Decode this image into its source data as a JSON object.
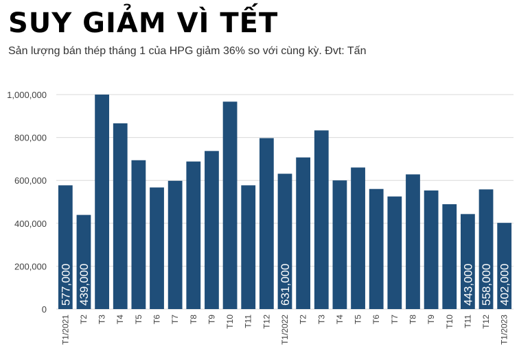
{
  "title": "SUY GIẢM VÌ TẾT",
  "subtitle": "Sản lượng bán thép tháng 1 của HPG giảm 36% so với cùng kỳ. Đvt: Tấn",
  "colors": {
    "bar": "#1f4e79",
    "grid": "#d9d9d9",
    "axis_text": "#404040",
    "label_text": "#ffffff"
  },
  "chart_data": {
    "type": "bar",
    "categories": [
      "T1/2021",
      "T2",
      "T3",
      "T4",
      "T5",
      "T6",
      "T7",
      "T8",
      "T9",
      "T10",
      "T11",
      "T12",
      "T1/2022",
      "T2",
      "T3",
      "T4",
      "T5",
      "T6",
      "T7",
      "T8",
      "T9",
      "T10",
      "T11",
      "T12",
      "T1/2023"
    ],
    "values": [
      577000,
      439000,
      1000000,
      866000,
      694000,
      567000,
      598000,
      688000,
      737000,
      967000,
      577000,
      797000,
      631000,
      707000,
      833000,
      600000,
      660000,
      560000,
      525000,
      628000,
      553000,
      489000,
      443000,
      558000,
      402000
    ],
    "data_labels": [
      {
        "index": 0,
        "text": "577,000"
      },
      {
        "index": 1,
        "text": "439,000"
      },
      {
        "index": 12,
        "text": "631,000"
      },
      {
        "index": 22,
        "text": "443,000"
      },
      {
        "index": 23,
        "text": "558,000"
      },
      {
        "index": 24,
        "text": "402,000"
      }
    ],
    "ylim": [
      0,
      1000000
    ],
    "yticks": [
      0,
      200000,
      400000,
      600000,
      800000,
      1000000
    ],
    "ytick_labels": [
      "0",
      "200,000",
      "400,000",
      "600,000",
      "800,000",
      "1,000,000"
    ],
    "grid": true
  }
}
